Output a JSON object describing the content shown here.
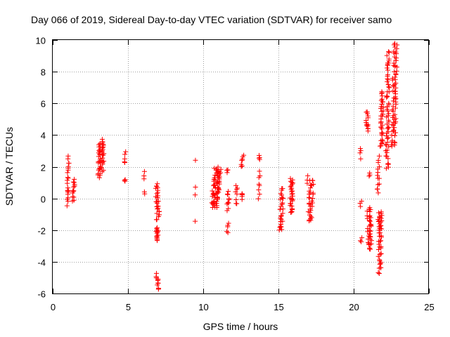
{
  "chart_data": {
    "type": "scatter",
    "title": "Day 066 of 2019, Sidereal Day-to-day VTEC variation (SDTVAR) for receiver samo",
    "xlabel": "GPS time / hours",
    "ylabel": "SDTVAR / TECUs",
    "xlim": [
      0,
      25
    ],
    "ylim": [
      -6,
      10
    ],
    "xticks": [
      0,
      5,
      10,
      15,
      20,
      25
    ],
    "yticks": [
      -6,
      -4,
      -2,
      0,
      2,
      4,
      6,
      8,
      10
    ],
    "grid": true,
    "marker": "+",
    "color": "#ff0000",
    "clusters": [
      {
        "x0": 0.95,
        "x1": 1.05,
        "ya": -0.4,
        "yb": 0.6,
        "n": 8
      },
      {
        "x0": 0.95,
        "x1": 1.1,
        "ya": 0.6,
        "yb": 2.6,
        "n": 14
      },
      {
        "x0": 1.3,
        "x1": 1.5,
        "ya": -0.1,
        "yb": 1.2,
        "n": 14
      },
      {
        "x0": 3.0,
        "x1": 3.2,
        "ya": 1.3,
        "yb": 3.5,
        "n": 26
      },
      {
        "x0": 3.2,
        "x1": 3.45,
        "ya": 1.8,
        "yb": 3.7,
        "n": 24
      },
      {
        "x0": 4.75,
        "x1": 4.85,
        "ya": 2.2,
        "yb": 2.9,
        "n": 5
      },
      {
        "x0": 4.75,
        "x1": 4.85,
        "ya": 1.0,
        "yb": 1.2,
        "n": 3
      },
      {
        "x0": 6.05,
        "x1": 6.15,
        "ya": 1.2,
        "yb": 1.6,
        "n": 3
      },
      {
        "x0": 6.05,
        "x1": 6.15,
        "ya": 0.2,
        "yb": 0.35,
        "n": 2
      },
      {
        "x0": 6.8,
        "x1": 7.1,
        "ya": 0.9,
        "yb": -1.3,
        "n": 28
      },
      {
        "x0": 6.85,
        "x1": 7.05,
        "ya": -1.8,
        "yb": -2.7,
        "n": 16
      },
      {
        "x0": 6.85,
        "x1": 7.05,
        "ya": -4.8,
        "yb": -5.8,
        "n": 12
      },
      {
        "x0": 9.45,
        "x1": 9.5,
        "ya": 2.3,
        "yb": 2.3,
        "n": 1
      },
      {
        "x0": 9.45,
        "x1": 9.5,
        "ya": 0.1,
        "yb": 0.6,
        "n": 2
      },
      {
        "x0": 9.45,
        "x1": 9.5,
        "ya": -1.5,
        "yb": -1.5,
        "n": 1
      },
      {
        "x0": 10.5,
        "x1": 11.2,
        "ya": -0.6,
        "yb": 2.0,
        "n": 70
      },
      {
        "x0": 11.55,
        "x1": 11.75,
        "ya": -0.7,
        "yb": 0.4,
        "n": 10
      },
      {
        "x0": 11.55,
        "x1": 11.7,
        "ya": 1.7,
        "yb": 1.9,
        "n": 4
      },
      {
        "x0": 11.55,
        "x1": 11.7,
        "ya": -2.1,
        "yb": -1.6,
        "n": 5
      },
      {
        "x0": 12.1,
        "x1": 12.3,
        "ya": -0.4,
        "yb": 0.9,
        "n": 8
      },
      {
        "x0": 12.5,
        "x1": 12.7,
        "ya": 2.0,
        "yb": 2.7,
        "n": 8
      },
      {
        "x0": 12.5,
        "x1": 12.7,
        "ya": -0.1,
        "yb": 0.4,
        "n": 5
      },
      {
        "x0": 13.65,
        "x1": 13.8,
        "ya": 2.4,
        "yb": 2.7,
        "n": 4
      },
      {
        "x0": 13.65,
        "x1": 13.8,
        "ya": -0.1,
        "yb": 1.8,
        "n": 8
      },
      {
        "x0": 15.05,
        "x1": 15.35,
        "ya": -2.1,
        "yb": 0.6,
        "n": 30
      },
      {
        "x0": 15.7,
        "x1": 16.0,
        "ya": -0.9,
        "yb": 1.2,
        "n": 30
      },
      {
        "x0": 16.8,
        "x1": 17.0,
        "ya": 1.0,
        "yb": 1.5,
        "n": 3
      },
      {
        "x0": 16.95,
        "x1": 17.35,
        "ya": -1.5,
        "yb": 1.2,
        "n": 34
      },
      {
        "x0": 20.4,
        "x1": 20.55,
        "ya": 2.6,
        "yb": 3.1,
        "n": 4
      },
      {
        "x0": 20.4,
        "x1": 20.55,
        "ya": -0.6,
        "yb": -0.2,
        "n": 3
      },
      {
        "x0": 20.4,
        "x1": 20.55,
        "ya": -2.8,
        "yb": -2.5,
        "n": 3
      },
      {
        "x0": 20.8,
        "x1": 21.0,
        "ya": 5.5,
        "yb": 4.2,
        "n": 14
      },
      {
        "x0": 20.85,
        "x1": 21.25,
        "ya": -0.7,
        "yb": -3.2,
        "n": 40
      },
      {
        "x0": 21.0,
        "x1": 21.1,
        "ya": 1.3,
        "yb": 1.5,
        "n": 3
      },
      {
        "x0": 21.6,
        "x1": 21.9,
        "ya": -4.7,
        "yb": -0.8,
        "n": 40
      },
      {
        "x0": 21.6,
        "x1": 21.8,
        "ya": -1.0,
        "yb": -1.9,
        "n": 8
      },
      {
        "x0": 21.55,
        "x1": 21.75,
        "ya": 0.3,
        "yb": 2.6,
        "n": 14
      },
      {
        "x0": 21.75,
        "x1": 22.0,
        "ya": 3.2,
        "yb": 6.8,
        "n": 36
      },
      {
        "x0": 22.1,
        "x1": 22.4,
        "ya": 1.8,
        "yb": 9.3,
        "n": 60
      },
      {
        "x0": 22.5,
        "x1": 22.9,
        "ya": 3.2,
        "yb": 9.8,
        "n": 70
      }
    ]
  }
}
